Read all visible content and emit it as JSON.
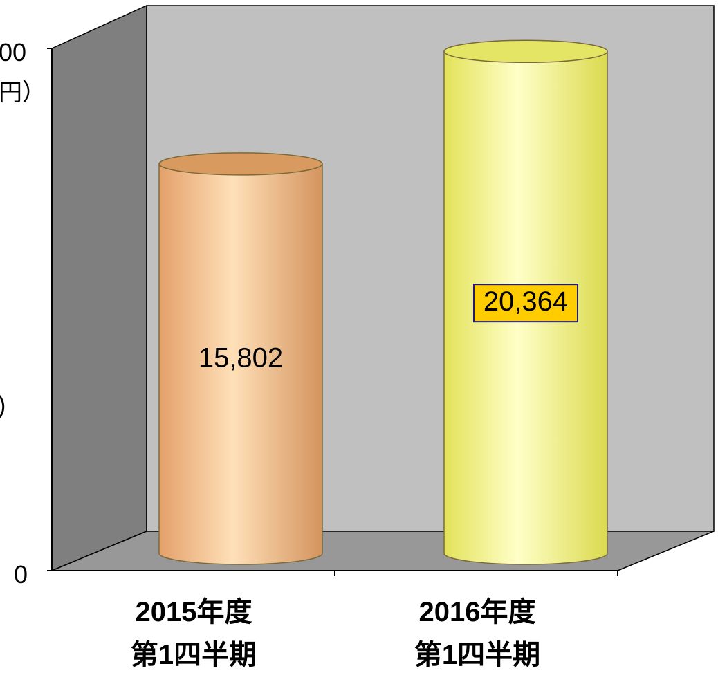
{
  "chart_data": {
    "type": "bar",
    "style": "3d-cylinder",
    "categories": [
      [
        "2015年度",
        "第1四半期"
      ],
      [
        "2016年度",
        "第1四半期"
      ]
    ],
    "values": [
      15802,
      20364
    ],
    "value_labels": [
      "15,802",
      "20,364"
    ],
    "colors": [
      "#f5b97f",
      "#f2f27a"
    ],
    "value_label_box": [
      null,
      {
        "fill": "#ffcc00",
        "border": "#1a1a80"
      }
    ],
    "y_ticks_visible": [
      "00",
      "0"
    ],
    "y_unit_fragment": "円）",
    "y_axis_fragment": "）",
    "ylim": [
      0,
      22000
    ],
    "grid": false,
    "legend": "none"
  }
}
